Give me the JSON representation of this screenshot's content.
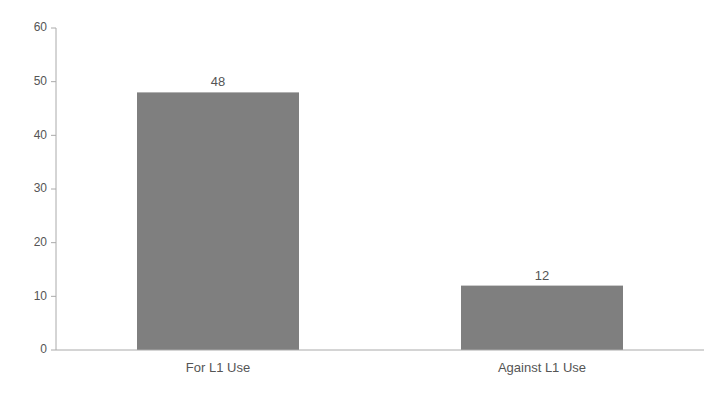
{
  "chart_data": {
    "type": "bar",
    "categories": [
      "For L1 Use",
      "Against L1 Use"
    ],
    "values": [
      48,
      12
    ],
    "color": "#7f7f7f",
    "ylim": [
      0,
      60
    ],
    "yticks": [
      0,
      10,
      20,
      30,
      40,
      50,
      60
    ],
    "grid": false,
    "data_labels": true
  }
}
